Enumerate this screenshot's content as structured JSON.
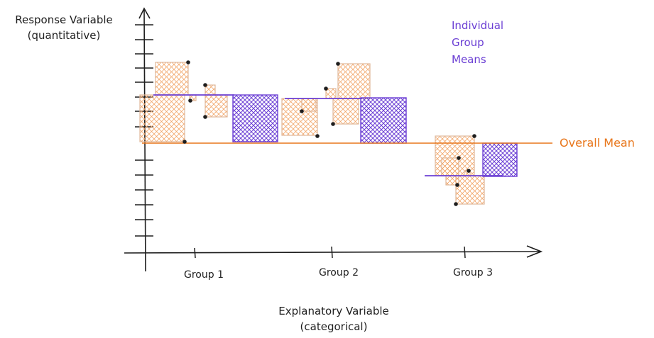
{
  "diagram": {
    "y_axis_label_line1": "Response Variable",
    "y_axis_label_line2": "(quantitative)",
    "x_axis_label_line1": "Explanatory Variable",
    "x_axis_label_line2": "(categorical)",
    "legend_group_means": [
      "Individual",
      "Group",
      "Means"
    ],
    "overall_mean_label": "Overall Mean",
    "groups": [
      "Group 1",
      "Group 2",
      "Group 3"
    ]
  },
  "colors": {
    "ink": "#1e1e1e",
    "orange": "#e8761b",
    "orange_fill": "#f7c9a4",
    "purple": "#6b3fd4",
    "purple_fill": "#8a63e6"
  }
}
